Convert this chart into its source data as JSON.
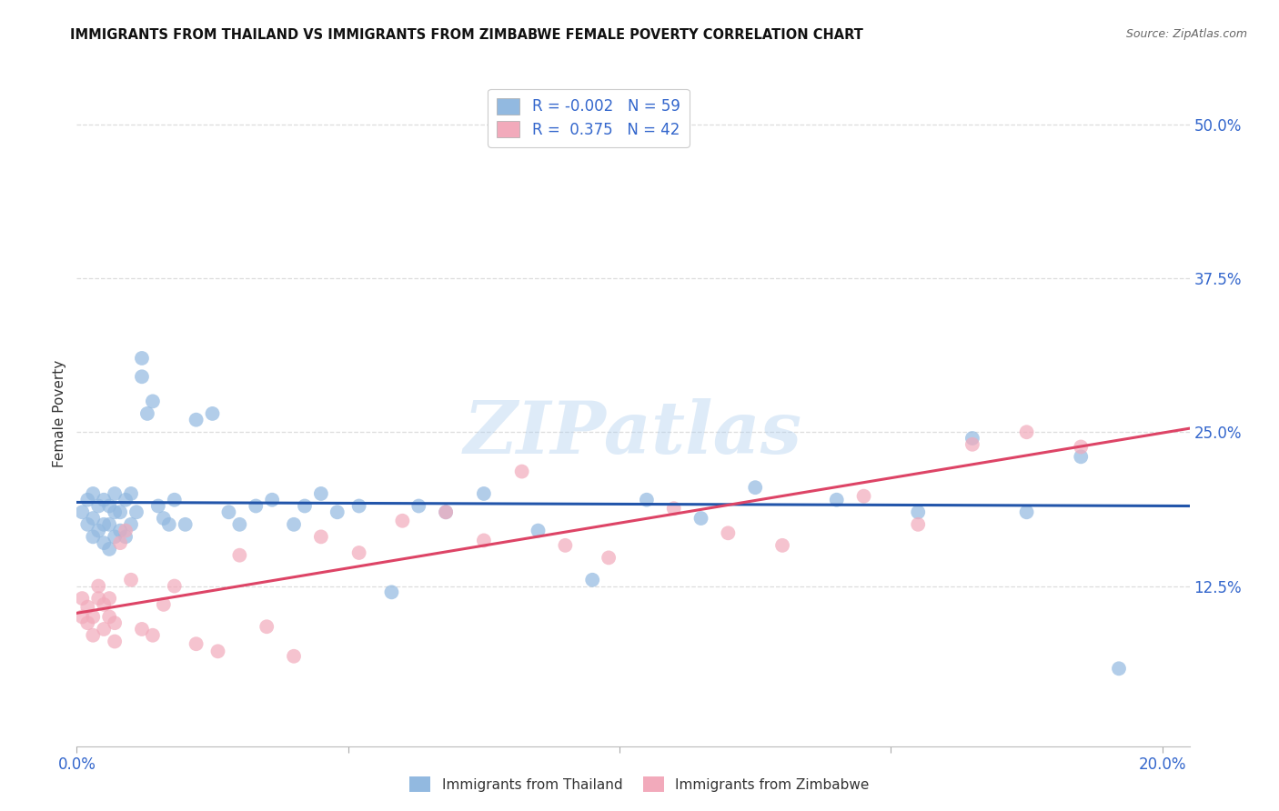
{
  "title": "IMMIGRANTS FROM THAILAND VS IMMIGRANTS FROM ZIMBABWE FEMALE POVERTY CORRELATION CHART",
  "source": "Source: ZipAtlas.com",
  "ylabel": "Female Poverty",
  "ytick_values": [
    0.125,
    0.25,
    0.375,
    0.5
  ],
  "ytick_labels": [
    "12.5%",
    "25.0%",
    "37.5%",
    "50.0%"
  ],
  "xlim": [
    0.0,
    0.205
  ],
  "ylim": [
    -0.005,
    0.535
  ],
  "legend_r_thailand": "R = -0.002",
  "legend_n_thailand": "N = 59",
  "legend_r_zimbabwe": "R =  0.375",
  "legend_n_zimbabwe": "N = 42",
  "color_thailand": "#92B9E0",
  "color_zimbabwe": "#F2AABB",
  "color_trendline_thailand": "#2255AA",
  "color_trendline_zimbabwe": "#DD4466",
  "background_color": "#FFFFFF",
  "grid_color": "#DDDDDD",
  "watermark_text": "ZIPatlas",
  "thailand_x": [
    0.001,
    0.002,
    0.002,
    0.003,
    0.003,
    0.003,
    0.004,
    0.004,
    0.005,
    0.005,
    0.005,
    0.006,
    0.006,
    0.006,
    0.007,
    0.007,
    0.007,
    0.008,
    0.008,
    0.009,
    0.009,
    0.01,
    0.01,
    0.011,
    0.012,
    0.012,
    0.013,
    0.014,
    0.015,
    0.016,
    0.017,
    0.018,
    0.02,
    0.022,
    0.025,
    0.028,
    0.03,
    0.033,
    0.036,
    0.04,
    0.042,
    0.045,
    0.048,
    0.052,
    0.058,
    0.063,
    0.068,
    0.075,
    0.085,
    0.095,
    0.105,
    0.115,
    0.125,
    0.14,
    0.155,
    0.165,
    0.175,
    0.185,
    0.192
  ],
  "thailand_y": [
    0.185,
    0.195,
    0.175,
    0.165,
    0.18,
    0.2,
    0.17,
    0.19,
    0.16,
    0.175,
    0.195,
    0.155,
    0.175,
    0.19,
    0.165,
    0.185,
    0.2,
    0.17,
    0.185,
    0.165,
    0.195,
    0.175,
    0.2,
    0.185,
    0.295,
    0.31,
    0.265,
    0.275,
    0.19,
    0.18,
    0.175,
    0.195,
    0.175,
    0.26,
    0.265,
    0.185,
    0.175,
    0.19,
    0.195,
    0.175,
    0.19,
    0.2,
    0.185,
    0.19,
    0.12,
    0.19,
    0.185,
    0.2,
    0.17,
    0.13,
    0.195,
    0.18,
    0.205,
    0.195,
    0.185,
    0.245,
    0.185,
    0.23,
    0.058
  ],
  "zimbabwe_x": [
    0.001,
    0.001,
    0.002,
    0.002,
    0.003,
    0.003,
    0.004,
    0.004,
    0.005,
    0.005,
    0.006,
    0.006,
    0.007,
    0.007,
    0.008,
    0.009,
    0.01,
    0.012,
    0.014,
    0.016,
    0.018,
    0.022,
    0.026,
    0.03,
    0.035,
    0.04,
    0.045,
    0.052,
    0.06,
    0.068,
    0.075,
    0.082,
    0.09,
    0.098,
    0.11,
    0.12,
    0.13,
    0.145,
    0.155,
    0.165,
    0.175,
    0.185
  ],
  "zimbabwe_y": [
    0.115,
    0.1,
    0.095,
    0.108,
    0.085,
    0.1,
    0.125,
    0.115,
    0.11,
    0.09,
    0.115,
    0.1,
    0.08,
    0.095,
    0.16,
    0.17,
    0.13,
    0.09,
    0.085,
    0.11,
    0.125,
    0.078,
    0.072,
    0.15,
    0.092,
    0.068,
    0.165,
    0.152,
    0.178,
    0.185,
    0.162,
    0.218,
    0.158,
    0.148,
    0.188,
    0.168,
    0.158,
    0.198,
    0.175,
    0.24,
    0.25,
    0.238
  ],
  "th_trend_x": [
    0.0,
    0.205
  ],
  "th_trend_y": [
    0.193,
    0.19
  ],
  "zw_trend_x": [
    0.0,
    0.205
  ],
  "zw_trend_y": [
    0.103,
    0.253
  ]
}
